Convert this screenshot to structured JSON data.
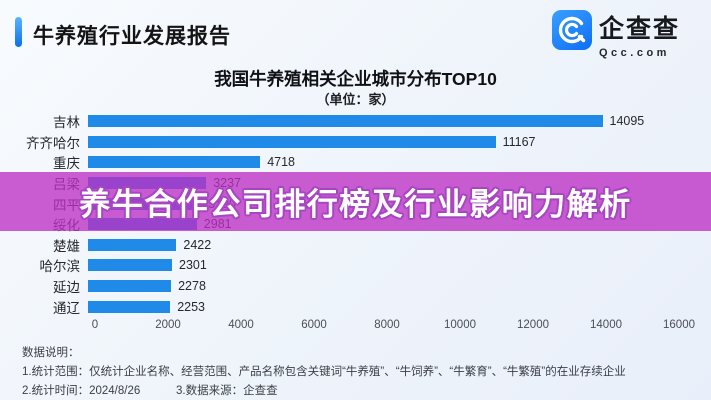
{
  "header": {
    "title": "牛养殖行业发展报告",
    "logo": {
      "brand": "企查查",
      "domain": "Qcc.com"
    }
  },
  "chart": {
    "title": "我国牛养殖相关企业城市分布TOP10",
    "subtitle": "（单位：家）"
  },
  "overlay": {
    "text": "养牛合作公司排行榜及行业影响力解析",
    "band_color": "rgba(188,47,196,0.78)"
  },
  "chart_data": {
    "type": "bar",
    "orientation": "horizontal",
    "title": "我国牛养殖相关企业城市分布TOP10",
    "unit": "家",
    "categories": [
      "吉林",
      "齐齐哈尔",
      "重庆",
      "吕梁",
      "四平",
      "绥化",
      "楚雄",
      "哈尔滨",
      "延边",
      "通辽"
    ],
    "values": [
      14095,
      11167,
      4718,
      3237,
      3100,
      2981,
      2422,
      2301,
      2278,
      2253
    ],
    "value_labels": [
      "14095",
      "11167",
      "4718",
      "3237",
      "3100",
      "2981",
      "2422",
      "2301",
      "2278",
      "2253"
    ],
    "note": "四平 value label is obscured by the overlay banner in the source image; 3100 is estimated from bar length (between 3237 and 2981)",
    "xlim": [
      0,
      16000
    ],
    "x_ticks": [
      0,
      2000,
      4000,
      6000,
      8000,
      10000,
      12000,
      14000,
      16000
    ],
    "bar_color": "#1f8ae8",
    "grid": false,
    "legend": false
  },
  "footer": {
    "heading": "数据说明：",
    "line1": "1.统计范围：仅统计企业名称、经营范围、产品名称包含关键词“牛养殖”、“牛饲养”、“牛繁育”、“牛繁殖”的在业存续企业",
    "line2": "2.统计时间：2024/8/26",
    "line3": "3.数据来源：企查查"
  }
}
